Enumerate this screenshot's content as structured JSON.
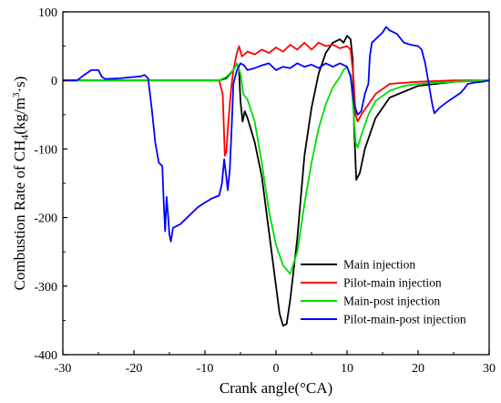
{
  "chart_data": {
    "type": "line",
    "xlabel": "Crank angle(°CA)",
    "ylabel_main": "Combustion Rate of CH",
    "ylabel_sub": "4",
    "ylabel_paren_open": "(kg/m",
    "ylabel_sup": "3",
    "ylabel_rest": "·s)",
    "xlim": [
      -30,
      30
    ],
    "ylim": [
      -400,
      100
    ],
    "xticks": [
      -30,
      -20,
      -10,
      0,
      10,
      20,
      30
    ],
    "yticks": [
      -400,
      -300,
      -200,
      -100,
      0,
      100
    ],
    "grid": false,
    "legend_position": "bottom-right",
    "series": [
      {
        "name": "Main injection",
        "color": "#000000",
        "points": [
          [
            -30,
            0
          ],
          [
            -8,
            0
          ],
          [
            -7,
            3
          ],
          [
            -6,
            15
          ],
          [
            -5.5,
            25
          ],
          [
            -5.2,
            15
          ],
          [
            -5,
            -30
          ],
          [
            -4.7,
            -60
          ],
          [
            -4.4,
            -45
          ],
          [
            -4,
            -55
          ],
          [
            -3,
            -90
          ],
          [
            -2,
            -140
          ],
          [
            -1,
            -220
          ],
          [
            0,
            -300
          ],
          [
            0.5,
            -340
          ],
          [
            1,
            -358
          ],
          [
            1.5,
            -355
          ],
          [
            2,
            -320
          ],
          [
            3,
            -230
          ],
          [
            4,
            -110
          ],
          [
            5,
            -40
          ],
          [
            6,
            10
          ],
          [
            7,
            40
          ],
          [
            8,
            55
          ],
          [
            9,
            60
          ],
          [
            9.5,
            55
          ],
          [
            10,
            65
          ],
          [
            10.5,
            60
          ],
          [
            10.8,
            30
          ],
          [
            11,
            -70
          ],
          [
            11.3,
            -145
          ],
          [
            11.8,
            -135
          ],
          [
            12.5,
            -100
          ],
          [
            14,
            -55
          ],
          [
            16,
            -25
          ],
          [
            20,
            -8
          ],
          [
            25,
            -2
          ],
          [
            30,
            0
          ]
        ]
      },
      {
        "name": "Pilot-main injection",
        "color": "#ff0000",
        "points": [
          [
            -30,
            0
          ],
          [
            -8,
            0
          ],
          [
            -7.5,
            -20
          ],
          [
            -7.2,
            -110
          ],
          [
            -7,
            -105
          ],
          [
            -6.7,
            -60
          ],
          [
            -6.3,
            -10
          ],
          [
            -6,
            15
          ],
          [
            -5.5,
            40
          ],
          [
            -5.2,
            50
          ],
          [
            -4.8,
            35
          ],
          [
            -4,
            42
          ],
          [
            -3,
            38
          ],
          [
            -2,
            45
          ],
          [
            -1,
            40
          ],
          [
            0,
            48
          ],
          [
            1,
            42
          ],
          [
            2,
            52
          ],
          [
            3,
            45
          ],
          [
            4,
            55
          ],
          [
            5,
            45
          ],
          [
            6,
            55
          ],
          [
            7,
            50
          ],
          [
            8,
            52
          ],
          [
            9,
            47
          ],
          [
            10,
            50
          ],
          [
            10.5,
            45
          ],
          [
            10.9,
            5
          ],
          [
            11.2,
            -50
          ],
          [
            11.5,
            -60
          ],
          [
            12,
            -50
          ],
          [
            13,
            -35
          ],
          [
            14,
            -20
          ],
          [
            16,
            -5
          ],
          [
            20,
            -2
          ],
          [
            25,
            0
          ],
          [
            30,
            0
          ]
        ]
      },
      {
        "name": "Main-post injection",
        "color": "#00dd00",
        "points": [
          [
            -30,
            0
          ],
          [
            -8,
            0
          ],
          [
            -7,
            5
          ],
          [
            -6,
            15
          ],
          [
            -5.5,
            25
          ],
          [
            -5,
            10
          ],
          [
            -4.6,
            -20
          ],
          [
            -4,
            -28
          ],
          [
            -3,
            -60
          ],
          [
            -2,
            -120
          ],
          [
            -1,
            -190
          ],
          [
            0,
            -240
          ],
          [
            1,
            -270
          ],
          [
            2,
            -282
          ],
          [
            3,
            -250
          ],
          [
            4,
            -180
          ],
          [
            5,
            -120
          ],
          [
            6,
            -70
          ],
          [
            7,
            -35
          ],
          [
            8,
            -10
          ],
          [
            9,
            5
          ],
          [
            9.5,
            15
          ],
          [
            10,
            20
          ],
          [
            10.5,
            8
          ],
          [
            10.8,
            -30
          ],
          [
            11.2,
            -90
          ],
          [
            11.5,
            -98
          ],
          [
            12,
            -80
          ],
          [
            13,
            -50
          ],
          [
            14,
            -30
          ],
          [
            16,
            -15
          ],
          [
            18,
            -8
          ],
          [
            20,
            -5
          ],
          [
            25,
            -2
          ],
          [
            30,
            0
          ]
        ]
      },
      {
        "name": "Pilot-main-post injection",
        "color": "#0000ff",
        "points": [
          [
            -30,
            0
          ],
          [
            -28,
            0
          ],
          [
            -27,
            8
          ],
          [
            -26,
            15
          ],
          [
            -25,
            15
          ],
          [
            -24.5,
            5
          ],
          [
            -24,
            2
          ],
          [
            -22,
            3
          ],
          [
            -19,
            6
          ],
          [
            -18.5,
            8
          ],
          [
            -18,
            3
          ],
          [
            -17.5,
            -40
          ],
          [
            -17,
            -90
          ],
          [
            -16.5,
            -120
          ],
          [
            -16,
            -125
          ],
          [
            -15.8,
            -180
          ],
          [
            -15.6,
            -220
          ],
          [
            -15.4,
            -170
          ],
          [
            -15.2,
            -195
          ],
          [
            -15,
            -225
          ],
          [
            -14.8,
            -235
          ],
          [
            -14.5,
            -215
          ],
          [
            -13.5,
            -210
          ],
          [
            -12,
            -195
          ],
          [
            -11,
            -185
          ],
          [
            -10,
            -178
          ],
          [
            -9,
            -172
          ],
          [
            -8,
            -168
          ],
          [
            -7.6,
            -150
          ],
          [
            -7.3,
            -115
          ],
          [
            -7,
            -140
          ],
          [
            -6.8,
            -160
          ],
          [
            -6.5,
            -130
          ],
          [
            -6.2,
            -60
          ],
          [
            -6,
            -5
          ],
          [
            -5.5,
            15
          ],
          [
            -5,
            25
          ],
          [
            -4.5,
            22
          ],
          [
            -4,
            15
          ],
          [
            -3,
            18
          ],
          [
            -2,
            22
          ],
          [
            -1,
            25
          ],
          [
            0,
            15
          ],
          [
            1,
            20
          ],
          [
            2,
            18
          ],
          [
            3,
            25
          ],
          [
            4,
            20
          ],
          [
            5,
            23
          ],
          [
            6,
            18
          ],
          [
            7,
            25
          ],
          [
            8,
            20
          ],
          [
            9,
            25
          ],
          [
            10,
            20
          ],
          [
            10.5,
            5
          ],
          [
            11,
            -35
          ],
          [
            11.5,
            -50
          ],
          [
            12,
            -45
          ],
          [
            12.5,
            -20
          ],
          [
            13,
            -5
          ],
          [
            13.2,
            35
          ],
          [
            13.5,
            55
          ],
          [
            14,
            60
          ],
          [
            14.5,
            65
          ],
          [
            15,
            70
          ],
          [
            15.5,
            78
          ],
          [
            16,
            73
          ],
          [
            17,
            68
          ],
          [
            18,
            55
          ],
          [
            19,
            52
          ],
          [
            20,
            50
          ],
          [
            20.5,
            45
          ],
          [
            21,
            25
          ],
          [
            21.5,
            -5
          ],
          [
            22,
            -35
          ],
          [
            22.3,
            -48
          ],
          [
            23,
            -40
          ],
          [
            24,
            -32
          ],
          [
            25,
            -25
          ],
          [
            26,
            -18
          ],
          [
            26.5,
            -12
          ],
          [
            27,
            -5
          ],
          [
            28,
            -3
          ],
          [
            29,
            -2
          ],
          [
            30,
            0
          ]
        ]
      }
    ]
  }
}
